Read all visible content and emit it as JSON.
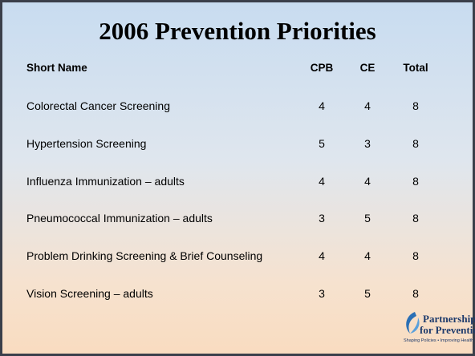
{
  "title": "2006 Prevention Priorities",
  "table": {
    "header": [
      "Short Name",
      "CPB",
      "CE",
      "Total"
    ],
    "rows": [
      [
        "Colorectal Cancer Screening",
        4,
        4,
        8
      ],
      [
        "Hypertension Screening",
        5,
        3,
        8
      ],
      [
        "Influenza Immunization – adults",
        4,
        4,
        8
      ],
      [
        "Pneumococcal Immunization – adults",
        3,
        5,
        8
      ],
      [
        "Problem Drinking Screening & Brief Counseling",
        4,
        4,
        8
      ],
      [
        "Vision Screening – adults",
        3,
        5,
        8
      ]
    ]
  },
  "logo": {
    "name_line1": "Partnership",
    "name_line2": "for Prevention",
    "tagline": "Shaping Policies • Improving Health"
  }
}
